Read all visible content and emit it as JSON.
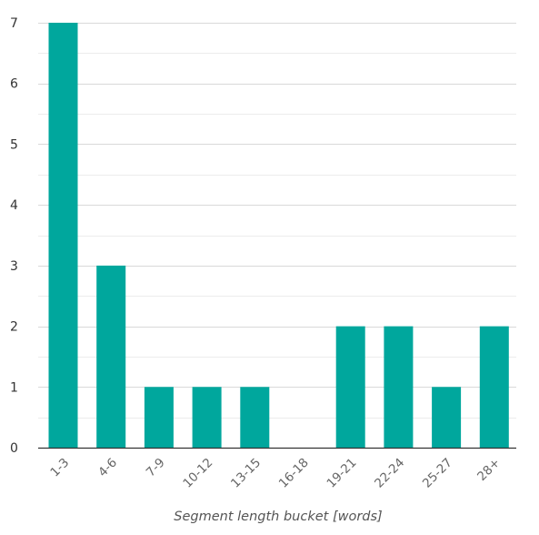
{
  "chart_data": {
    "type": "bar",
    "categories": [
      "1-3",
      "4-6",
      "7-9",
      "10-12",
      "13-15",
      "16-18",
      "19-21",
      "22-24",
      "25-27",
      "28+"
    ],
    "values": [
      7,
      3,
      1,
      1,
      1,
      0,
      2,
      2,
      1,
      2
    ],
    "yticks": [
      "0",
      "1",
      "2",
      "3",
      "4",
      "5",
      "6",
      "7"
    ],
    "xlabel": "Segment length bucket [words]",
    "ylabel": "",
    "ylim": [
      0,
      7
    ],
    "grid": true,
    "bar_color": "#00a79d"
  }
}
